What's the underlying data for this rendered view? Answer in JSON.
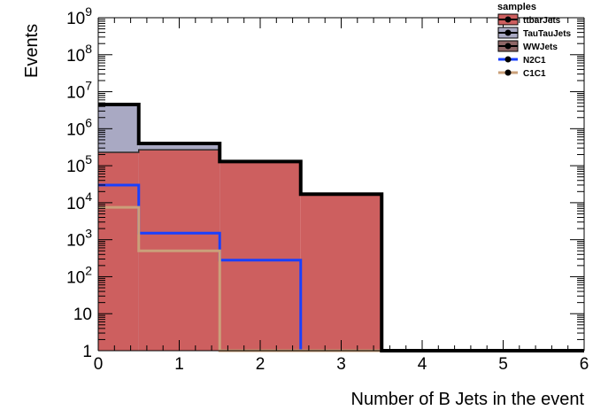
{
  "chart_data": {
    "type": "bar",
    "subtype": "stacked-step-histogram",
    "xlabel": "Number of B Jets in the event",
    "ylabel": "Events",
    "xlim": [
      0,
      6
    ],
    "ylim": [
      1,
      1000000000
    ],
    "y_scale": "log",
    "grid": false,
    "legend_position": "top-right",
    "x_ticks": [
      "0",
      "1",
      "2",
      "3",
      "4",
      "5",
      "6"
    ],
    "y_ticks": [
      {
        "value": 1,
        "label": "1"
      },
      {
        "value": 10,
        "label": "10"
      },
      {
        "value": 100,
        "label": "10",
        "exp": "2"
      },
      {
        "value": 1000,
        "label": "10",
        "exp": "3"
      },
      {
        "value": 10000,
        "label": "10",
        "exp": "4"
      },
      {
        "value": 100000,
        "label": "10",
        "exp": "5"
      },
      {
        "value": 1000000,
        "label": "10",
        "exp": "6"
      },
      {
        "value": 10000000,
        "label": "10",
        "exp": "7"
      },
      {
        "value": 100000000,
        "label": "10",
        "exp": "8"
      },
      {
        "value": 1000000000,
        "label": "10",
        "exp": "9"
      }
    ],
    "bin_edges": [
      -0.5,
      0.5,
      1.5,
      2.5,
      3.5,
      4.5,
      5.5,
      6.5
    ],
    "legend_title": "samples",
    "stacked_series": [
      {
        "name": "ttbarJets",
        "color": "#cd5f5f",
        "values": [
          230000,
          270000,
          130000,
          17000,
          1,
          1,
          1
        ]
      },
      {
        "name": "TauTauJets",
        "color": "#a9a9c3",
        "values": [
          4200000,
          120000,
          0,
          0,
          0,
          0,
          0
        ]
      },
      {
        "name": "WWJets",
        "color": "#8f6666",
        "values": [
          0,
          0,
          0,
          0,
          0,
          0,
          0
        ]
      }
    ],
    "stack_total": [
      4500000,
      400000,
      130000,
      17000,
      1,
      1,
      1
    ],
    "overlay_series": [
      {
        "name": "N2C1",
        "color": "#1a40ff",
        "values": [
          30000,
          1500,
          280,
          1,
          1,
          1,
          1
        ]
      },
      {
        "name": "C1C1",
        "color": "#caa07a",
        "values": [
          7500,
          500,
          1,
          1,
          1,
          1,
          1
        ]
      }
    ]
  }
}
